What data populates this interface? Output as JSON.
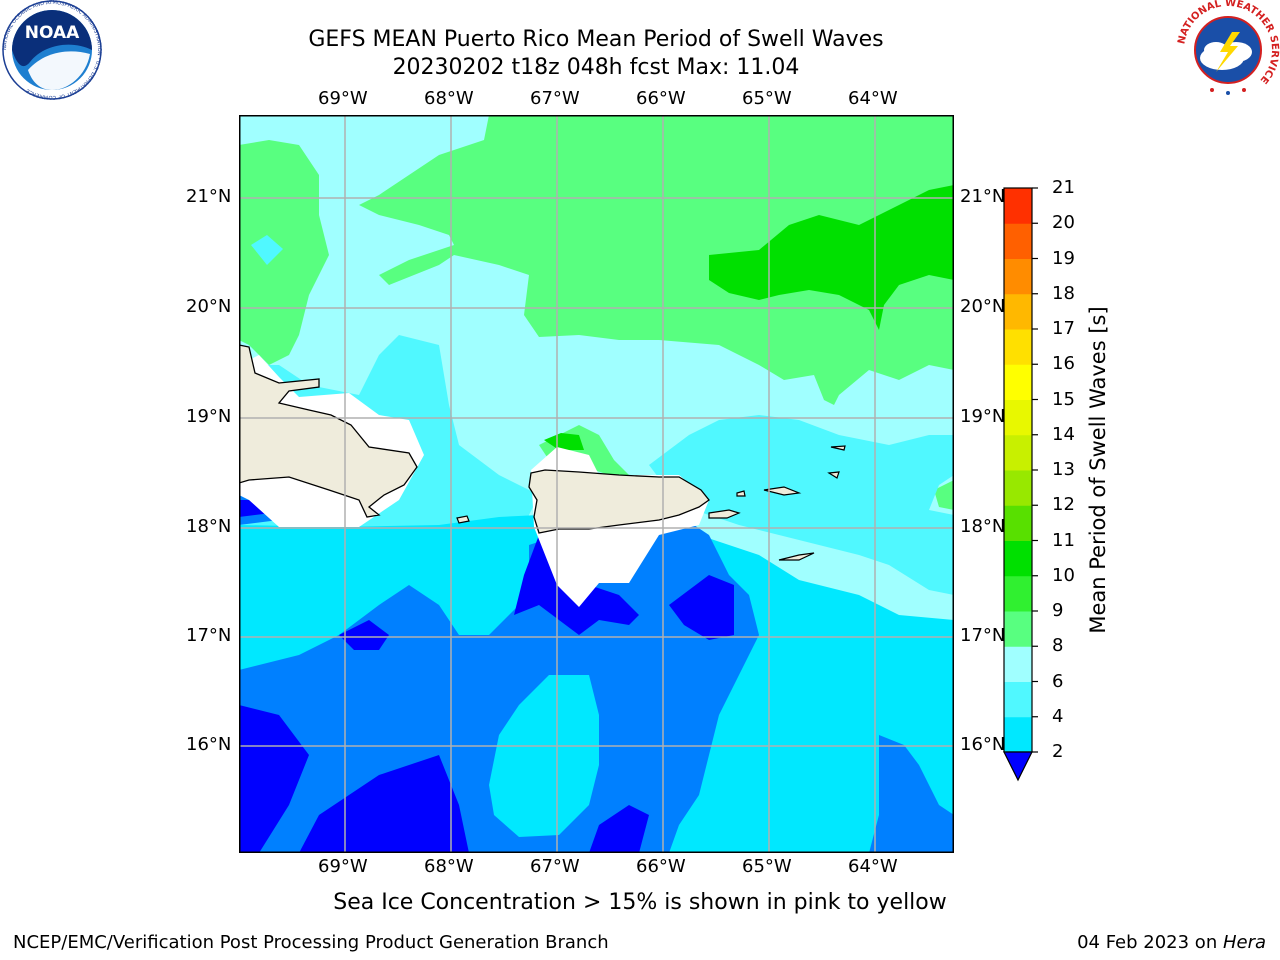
{
  "header": {
    "title_line1": "GEFS MEAN Puerto Rico Mean Period of Swell Waves",
    "title_line2": "20230202 t18z 048h fcst   Max: 11.04"
  },
  "logos": {
    "noaa_text": "NOAA",
    "noaa_ring_text": "NATIONAL OCEANIC AND ATMOSPHERIC ADMINISTRATION · U.S. DEPARTMENT OF COMMERCE",
    "nws_ring_text": "NATIONAL WEATHER SERVICE"
  },
  "map": {
    "lon_labels": [
      "69°W",
      "68°W",
      "67°W",
      "66°W",
      "65°W",
      "64°W"
    ],
    "lat_labels": [
      "21°N",
      "20°N",
      "19°N",
      "18°N",
      "17°N",
      "16°N"
    ],
    "land_color": "#efecdc",
    "masked_color": "#ffffff"
  },
  "colorbar": {
    "title": "Mean Period of Swell Waves [s]",
    "tick_labels": [
      "2",
      "4",
      "6",
      "8",
      "9",
      "10",
      "11",
      "12",
      "13",
      "14",
      "15",
      "16",
      "17",
      "18",
      "19",
      "20",
      "21"
    ],
    "colors": [
      "#0000ff",
      "#0080ff",
      "#00e8ff",
      "#50f8ff",
      "#a0ffff",
      "#58ff80",
      "#30f030",
      "#00e000",
      "#58e000",
      "#98e800",
      "#c8f000",
      "#e8f800",
      "#ffff00",
      "#ffe000",
      "#ffb800",
      "#ff8c00",
      "#ff6000",
      "#ff3000",
      "#ff0000"
    ]
  },
  "caption": "Sea Ice Concentration > 15% is shown in pink to yellow",
  "footer": {
    "left": "NCEP/EMC/Verification Post Processing Product Generation Branch",
    "date": "04 Feb 2023 on ",
    "machine": "Hera"
  }
}
